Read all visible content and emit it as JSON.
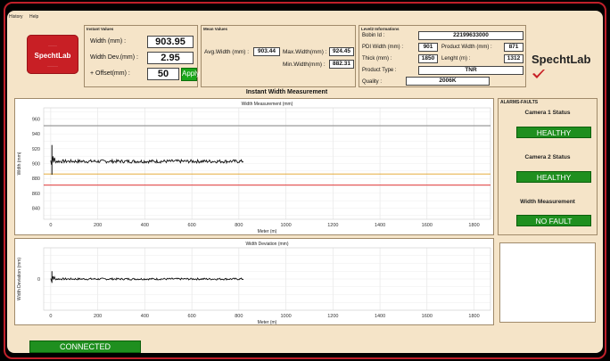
{
  "menu": [
    "History",
    "Help"
  ],
  "logo": {
    "top": "..........",
    "text": "SpechtLab",
    "bottom": "............"
  },
  "instant": {
    "title": "Instant Values",
    "width_label": "Width (mm) :",
    "width_value": "903.95",
    "dev_label": "Width Dev.(mm) :",
    "dev_value": "2.95",
    "offset_label": "+ Offset(mm) :",
    "offset_value": "50",
    "apply_label": "Apply"
  },
  "mean": {
    "title": "Mean Values",
    "avg_label": "Avg.Width (mm) :",
    "avg_value": "903.44",
    "max_label": "Max.Width(mm) :",
    "max_value": "924.45",
    "min_label": "Min.Width(mm) :",
    "min_value": "882.31"
  },
  "level2": {
    "title": "Level2 Informations",
    "bobin_label": "Bobin Id :",
    "bobin_value": "22199633000",
    "pdi_label": "PDI Width (mm) :",
    "pdi_value": "901",
    "pw_label": "Product Width (mm) :",
    "pw_value": "871",
    "thick_label": "Thick (mm) :",
    "thick_value": "1850",
    "len_label": "Lenght (m) :",
    "len_value": "1312",
    "ptype_label": "Product Type :",
    "ptype_value": "TNR",
    "quality_label": "Quality :",
    "quality_value": "2006K"
  },
  "brand": "SpechtLab",
  "section_title": "Instant Width Measurement",
  "alarms": {
    "title": "ALARMS-FAULTS",
    "cam1_label": "Camera 1 Status",
    "cam1_value": "HEALTHY",
    "cam2_label": "Camera 2 Status",
    "cam2_value": "HEALTHY",
    "wm_label": "Width Measurement",
    "wm_value": "NO FAULT"
  },
  "connection": "CONNECTED",
  "chart_data": [
    {
      "type": "line",
      "title": "Width Measurement (mm)",
      "xlabel": "Meter (m)",
      "ylabel": "Width (mm)",
      "xlim": [
        -30,
        1870
      ],
      "ylim": [
        825,
        975
      ],
      "xticks": [
        0,
        200,
        400,
        600,
        800,
        1000,
        1200,
        1400,
        1600,
        1800
      ],
      "yticks": [
        840,
        860,
        880,
        900,
        920,
        940,
        960
      ],
      "ref_lines": [
        {
          "y": 951,
          "color": "#888888"
        },
        {
          "y": 886,
          "color": "#e0a020"
        },
        {
          "y": 871,
          "color": "#e02020"
        }
      ],
      "series": [
        {
          "color": "#111111",
          "x_start": 0,
          "x_end": 820,
          "level": 903
        }
      ],
      "spike": {
        "x": 5,
        "min": 885,
        "max": 925
      },
      "grid": true
    },
    {
      "type": "line",
      "title": "Width Deviation (mm)",
      "xlabel": "Meter (m)",
      "ylabel": "Width Deviation (mm)",
      "xlim": [
        -30,
        1870
      ],
      "ylim": [
        -40,
        40
      ],
      "xticks": [
        0,
        200,
        400,
        600,
        800,
        1000,
        1200,
        1400,
        1600,
        1800
      ],
      "yticks": [
        0
      ],
      "series": [
        {
          "color": "#111111",
          "x_start": 0,
          "x_end": 820,
          "level": 0
        }
      ],
      "spike": {
        "x": 5,
        "min": -5,
        "max": 10
      },
      "grid": true
    }
  ],
  "colors": {
    "background": "#f5e4c8",
    "status_green": "#1f8f1f",
    "brand_red": "#c81f25"
  }
}
